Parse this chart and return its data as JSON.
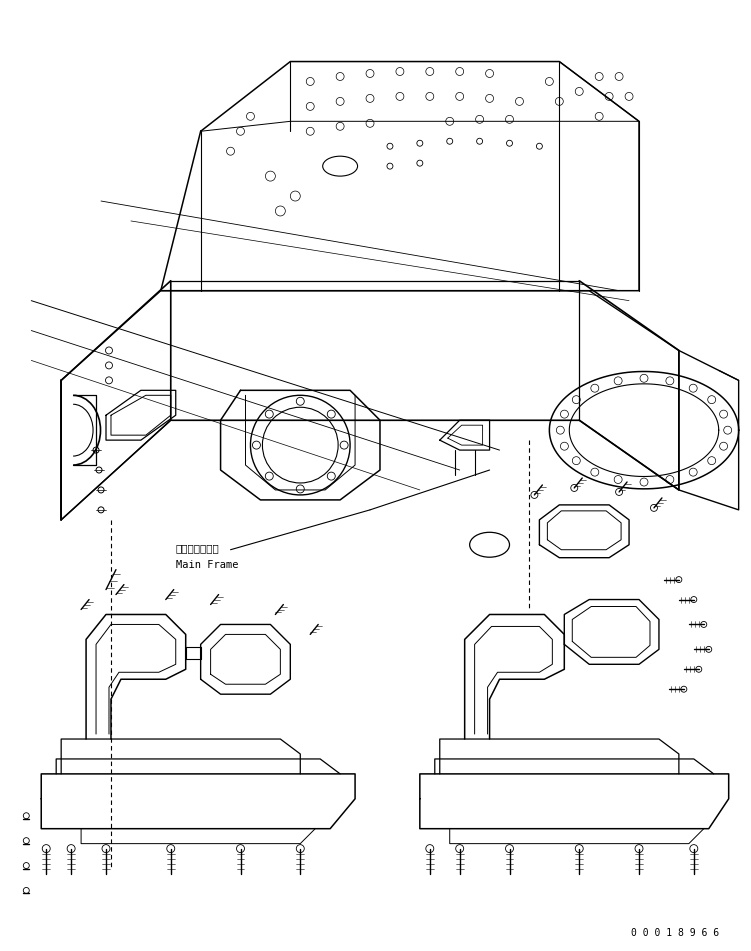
{
  "background_color": "#ffffff",
  "line_color": "#000000",
  "fig_width": 7.51,
  "fig_height": 9.51,
  "dpi": 100,
  "label_japanese": "メインフレーム",
  "label_english": "Main Frame",
  "part_number": "0 0 0 1 8 9 6 6",
  "font_size_label": 7.5,
  "font_size_partnumber": 7
}
